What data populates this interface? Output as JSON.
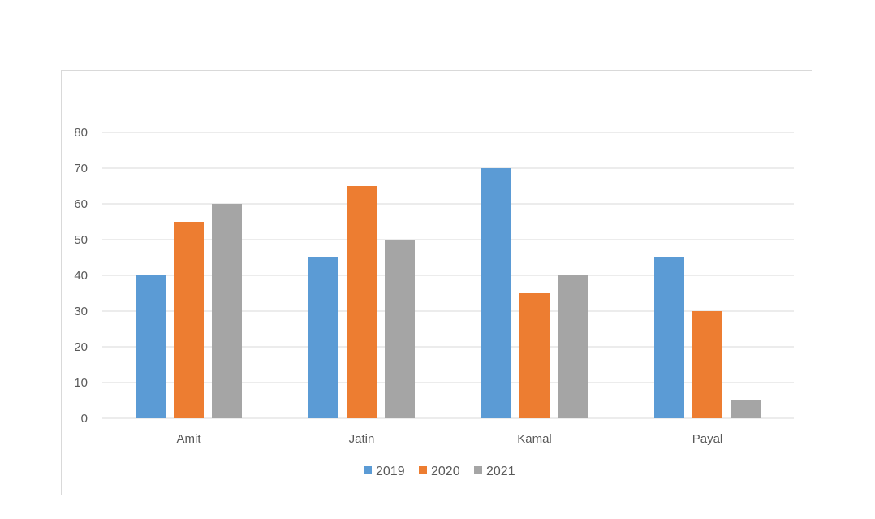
{
  "chart_data": {
    "type": "bar",
    "title": "",
    "xlabel": "",
    "ylabel": "",
    "categories": [
      "Amit",
      "Jatin",
      "Kamal",
      "Payal"
    ],
    "series": [
      {
        "name": "2019",
        "values": [
          40,
          45,
          70,
          45
        ],
        "color": "#5b9bd5"
      },
      {
        "name": "2020",
        "values": [
          55,
          65,
          35,
          30
        ],
        "color": "#ed7d31"
      },
      {
        "name": "2021",
        "values": [
          60,
          50,
          40,
          5
        ],
        "color": "#a5a5a5"
      }
    ],
    "ylim": [
      0,
      80
    ],
    "yticks": [
      "0",
      "10",
      "20",
      "30",
      "40",
      "50",
      "60",
      "70",
      "80"
    ],
    "grid": true,
    "legend": "bottom"
  }
}
